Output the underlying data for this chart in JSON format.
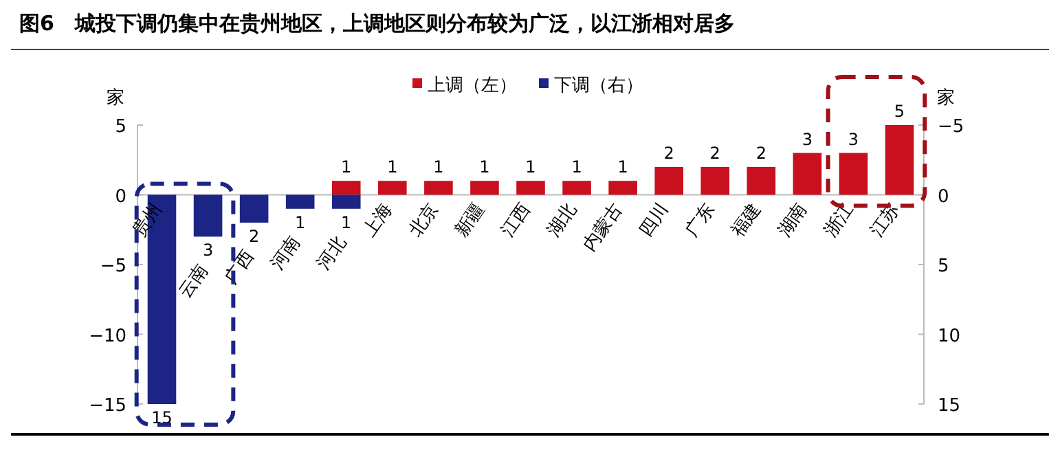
{
  "chart_data": {
    "type": "bar",
    "title": "图6　城投下调仍集中在贵州地区，上调地区则分布较为广泛，以江浙相对居多",
    "categories": [
      "贵州",
      "云南",
      "广西",
      "河南",
      "河北",
      "上海",
      "北京",
      "新疆",
      "江西",
      "湖北",
      "内蒙古",
      "四川",
      "广东",
      "福建",
      "湖南",
      "浙江",
      "江苏"
    ],
    "series": [
      {
        "name": "上调（左）",
        "color": "#c8101e",
        "values": [
          null,
          null,
          null,
          null,
          1,
          1,
          1,
          1,
          1,
          1,
          1,
          2,
          2,
          2,
          3,
          3,
          5
        ]
      },
      {
        "name": "下调（右）",
        "color": "#1c2586",
        "axis": "y2",
        "values": [
          15,
          3,
          2,
          1,
          1,
          null,
          null,
          null,
          null,
          null,
          null,
          null,
          null,
          null,
          null,
          null,
          null
        ]
      }
    ],
    "ylabel": "家",
    "y2label": "家",
    "ylim": [
      -15,
      5
    ],
    "yticks": [
      -15,
      -10,
      -5,
      0,
      5
    ],
    "y2lim": [
      15,
      -5
    ],
    "y2ticks": [
      15,
      10,
      5,
      0,
      -5
    ],
    "data_labels": true,
    "legend": "top",
    "grid": false
  }
}
